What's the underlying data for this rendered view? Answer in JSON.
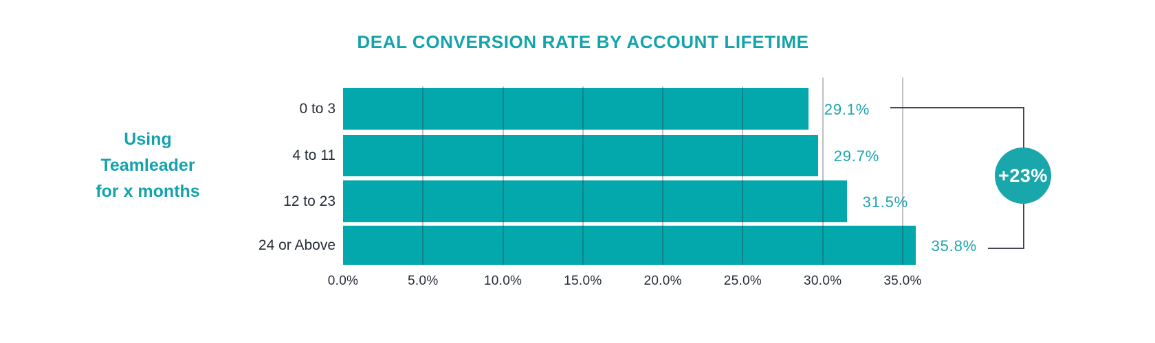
{
  "title": "DEAL CONVERSION RATE BY ACCOUNT LIFETIME",
  "side_label": "Using\nTeamleader\nfor x months",
  "badge": {
    "label": "+23%"
  },
  "colors": {
    "bar_teal": "#02a8ac",
    "text_teal": "#14a3ab",
    "dark_text": "#262c38",
    "connector": "#43474f",
    "badge_fill": "#1aa7ab"
  },
  "chart_data": {
    "type": "bar",
    "orientation": "horizontal",
    "title": "DEAL CONVERSION RATE BY ACCOUNT LIFETIME",
    "categories": [
      "0 to 3",
      "4 to 11",
      "12 to 23",
      "24 or Above"
    ],
    "values": [
      29.1,
      29.7,
      31.5,
      35.8
    ],
    "value_labels": [
      "29.1%",
      "29.7%",
      "31.5%",
      "35.8%"
    ],
    "x_tick_values": [
      0,
      5,
      10,
      15,
      20,
      25,
      30,
      35
    ],
    "x_tick_labels": [
      "0.0%",
      "5.0%",
      "10.0%",
      "15.0%",
      "20.0%",
      "25.0%",
      "30.0%",
      "35.0%"
    ],
    "xlim": [
      0,
      36.3
    ],
    "grid": true,
    "legend": false,
    "group_axis_label": "Using Teamleader for x months",
    "annotation": {
      "label": "+23%",
      "connects_from": "29.1%",
      "connects_to": "35.8%",
      "meaning": "uplift between first and last category"
    }
  }
}
